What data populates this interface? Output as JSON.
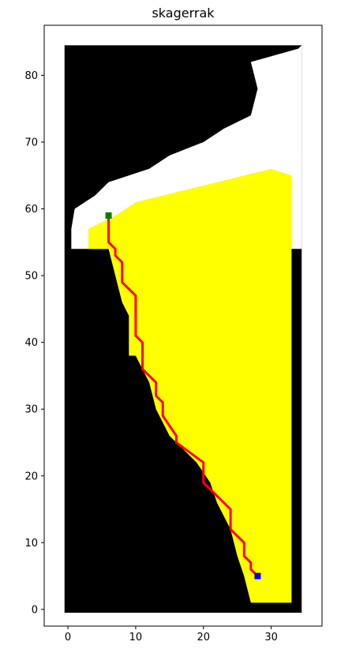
{
  "chart_data": {
    "type": "scatter",
    "title": "skagerrak",
    "xlabel": "",
    "ylabel": "",
    "xlim": [
      -3.5,
      37.5
    ],
    "ylim": [
      -2.5,
      87.5
    ],
    "xticks": [
      0,
      10,
      20,
      30
    ],
    "yticks": [
      0,
      10,
      20,
      30,
      40,
      50,
      60,
      70,
      80
    ],
    "grid": false,
    "grid_extent": {
      "x": [
        0,
        34
      ],
      "y": [
        0,
        84
      ]
    },
    "colors": {
      "water": "#000000",
      "land": "#ffffff",
      "explored": "#ffff00",
      "path": "#ff0000",
      "start": "#008000",
      "goal": "#0000ff"
    },
    "land_profile": [
      {
        "y": 84,
        "x_from": 34
      },
      {
        "y": 82,
        "x_from": 27
      },
      {
        "y": 78,
        "x_from": 28
      },
      {
        "y": 74,
        "x_from": 27
      },
      {
        "y": 72,
        "x_from": 23
      },
      {
        "y": 70,
        "x_from": 20
      },
      {
        "y": 68,
        "x_from": 15
      },
      {
        "y": 66,
        "x_from": 12
      },
      {
        "y": 64,
        "x_from": 6
      },
      {
        "y": 62,
        "x_from": 4
      },
      {
        "y": 60,
        "x_from": 1
      },
      {
        "y": 57,
        "x_from": 0.5
      },
      {
        "y": 54,
        "x_from": 0.5
      }
    ],
    "explored_region": {
      "top": [
        [
          3,
          57
        ],
        [
          5,
          58
        ],
        [
          7,
          59
        ],
        [
          10,
          61
        ],
        [
          14,
          62
        ],
        [
          18,
          63
        ],
        [
          22,
          64
        ],
        [
          26,
          65
        ],
        [
          30,
          66
        ],
        [
          33,
          65
        ]
      ],
      "bottom": [
        [
          3,
          54
        ],
        [
          6,
          54
        ],
        [
          7,
          50
        ],
        [
          8,
          46
        ],
        [
          9,
          44
        ],
        [
          9,
          38
        ],
        [
          10,
          38
        ],
        [
          11,
          36
        ],
        [
          12,
          34
        ],
        [
          13,
          30
        ],
        [
          15,
          26
        ],
        [
          17,
          24
        ],
        [
          19,
          22
        ],
        [
          21,
          19
        ],
        [
          22,
          16
        ],
        [
          24,
          12
        ],
        [
          25,
          8
        ],
        [
          26,
          5
        ],
        [
          27,
          1
        ],
        [
          33,
          1
        ]
      ]
    },
    "path": {
      "x": [
        6,
        6,
        7,
        7,
        8,
        8,
        10,
        10,
        11,
        11,
        13,
        13,
        14,
        14,
        16,
        16,
        20,
        20,
        24,
        24,
        26,
        26,
        27,
        27,
        28
      ],
      "y": [
        59,
        55,
        54,
        53,
        52,
        49,
        47,
        41,
        40,
        36,
        34,
        32,
        31,
        29,
        26,
        25,
        22,
        19,
        15,
        12,
        10,
        8,
        7,
        6,
        5
      ]
    },
    "start": {
      "x": 6,
      "y": 59
    },
    "goal": {
      "x": 28,
      "y": 5
    }
  }
}
